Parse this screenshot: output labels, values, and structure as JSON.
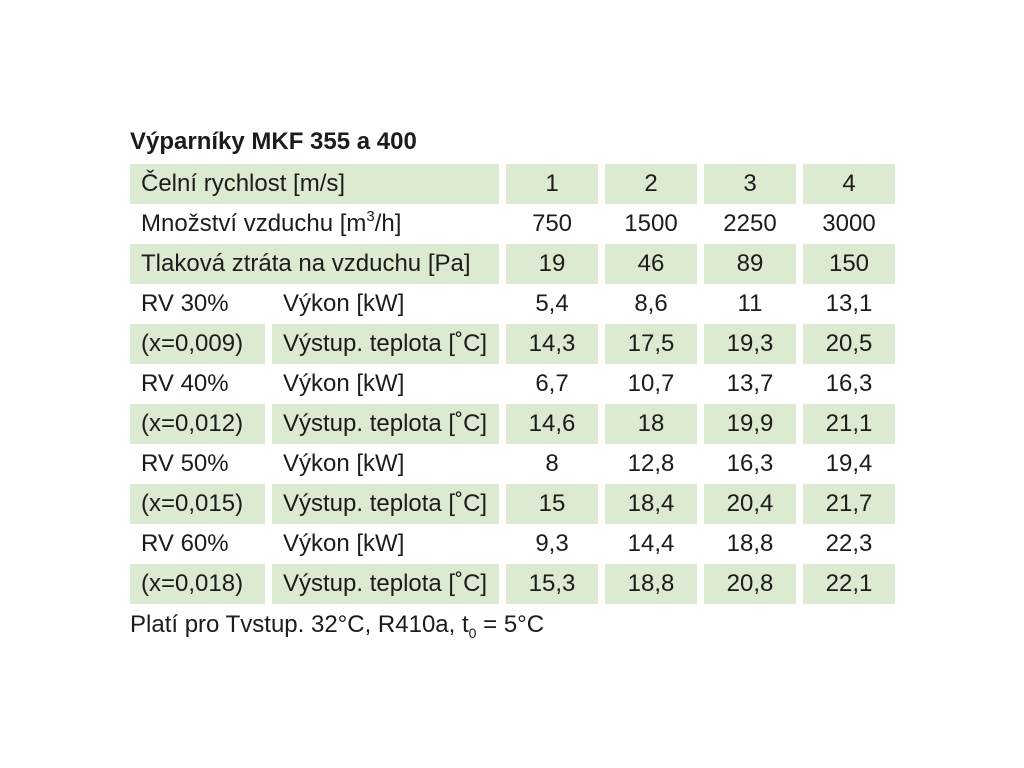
{
  "colors": {
    "highlight_green": "#dcead2",
    "text": "#1c1c1a",
    "background": "#ffffff"
  },
  "table": {
    "title": "Výparníky MKF 355 a 400",
    "columns_note": "label columns + 4 value columns",
    "rows": [
      {
        "label": "Čelní rychlost [m/s]",
        "green": true,
        "v": [
          "1",
          "2",
          "3",
          "4"
        ]
      },
      {
        "label_pre": "Množství vzduchu [m",
        "label_sup": "3",
        "label_post": "/h]",
        "green": false,
        "v": [
          "750",
          "1500",
          "2250",
          "3000"
        ]
      },
      {
        "label": "Tlaková ztráta na vzduchu [Pa]",
        "green": true,
        "v": [
          "19",
          "46",
          "89",
          "150"
        ]
      },
      {
        "c1": "RV 30%",
        "c2": "Výkon [kW]",
        "green": false,
        "v": [
          "5,4",
          "8,6",
          "11",
          "13,1"
        ]
      },
      {
        "c1": "(x=0,009)",
        "c2": "Výstup. teplota [˚C]",
        "green": true,
        "v": [
          "14,3",
          "17,5",
          "19,3",
          "20,5"
        ]
      },
      {
        "c1": "RV 40%",
        "c2": "Výkon [kW]",
        "green": false,
        "v": [
          "6,7",
          "10,7",
          "13,7",
          "16,3"
        ]
      },
      {
        "c1": "(x=0,012)",
        "c2": "Výstup. teplota [˚C]",
        "green": true,
        "v": [
          "14,6",
          "18",
          "19,9",
          "21,1"
        ]
      },
      {
        "c1": "RV 50%",
        "c2": "Výkon [kW]",
        "green": false,
        "v": [
          "8",
          "12,8",
          "16,3",
          "19,4"
        ]
      },
      {
        "c1": "(x=0,015)",
        "c2": "Výstup. teplota [˚C]",
        "green": true,
        "v": [
          "15",
          "18,4",
          "20,4",
          "21,7"
        ]
      },
      {
        "c1": "RV 60%",
        "c2": "Výkon [kW]",
        "green": false,
        "v": [
          "9,3",
          "14,4",
          "18,8",
          "22,3"
        ]
      },
      {
        "c1": "(x=0,018)",
        "c2": "Výstup. teplota [˚C]",
        "green": true,
        "v": [
          "15,3",
          "18,8",
          "20,8",
          "22,1"
        ]
      }
    ]
  },
  "footer": {
    "pre": "Platí pro Tvstup. 32°C, R410a, t",
    "sub": "0",
    "post": " = 5°C"
  }
}
